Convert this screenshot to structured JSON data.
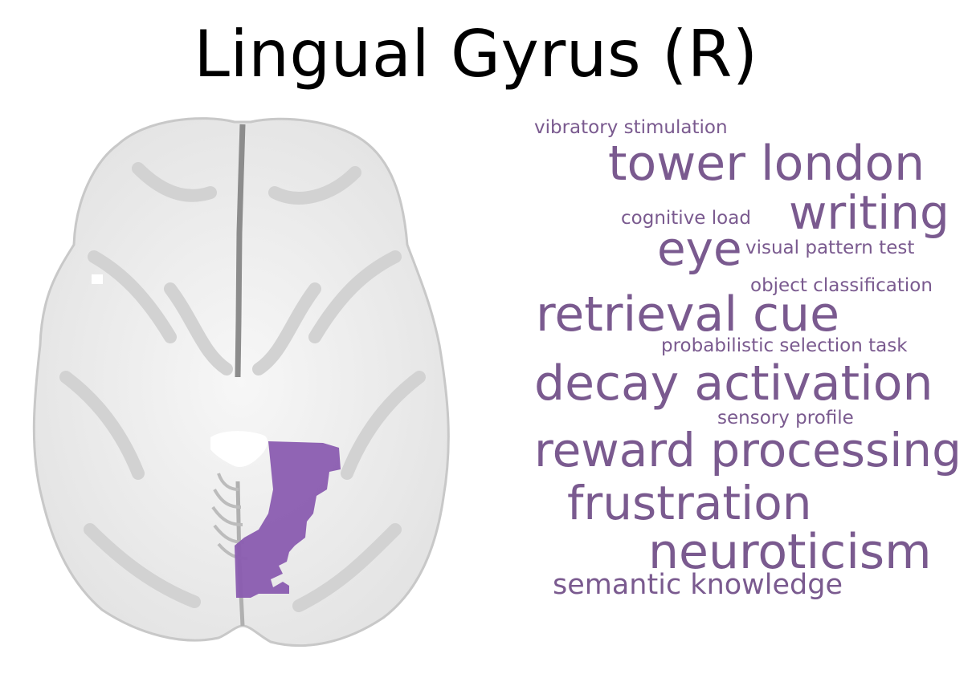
{
  "title": "Lingual Gyrus (R)",
  "colors": {
    "word": "#7a5a8f",
    "region": "#8a5cb0",
    "brain_light": "#efefef",
    "brain_mid": "#d6d6d6",
    "brain_dark": "#9a9a9a"
  },
  "image": {
    "brain_icon": "axial-brain-slice",
    "highlight_region": "lingual gyrus right hemisphere"
  },
  "words": [
    "vibratory stimulation",
    "tower london",
    "cognitive load",
    "writing",
    "eye",
    "visual pattern test",
    "object classification",
    "retrieval cue",
    "probabilistic selection task",
    "decay activation",
    "sensory profile",
    "reward processing",
    "frustration",
    "neuroticism",
    "semantic knowledge"
  ]
}
